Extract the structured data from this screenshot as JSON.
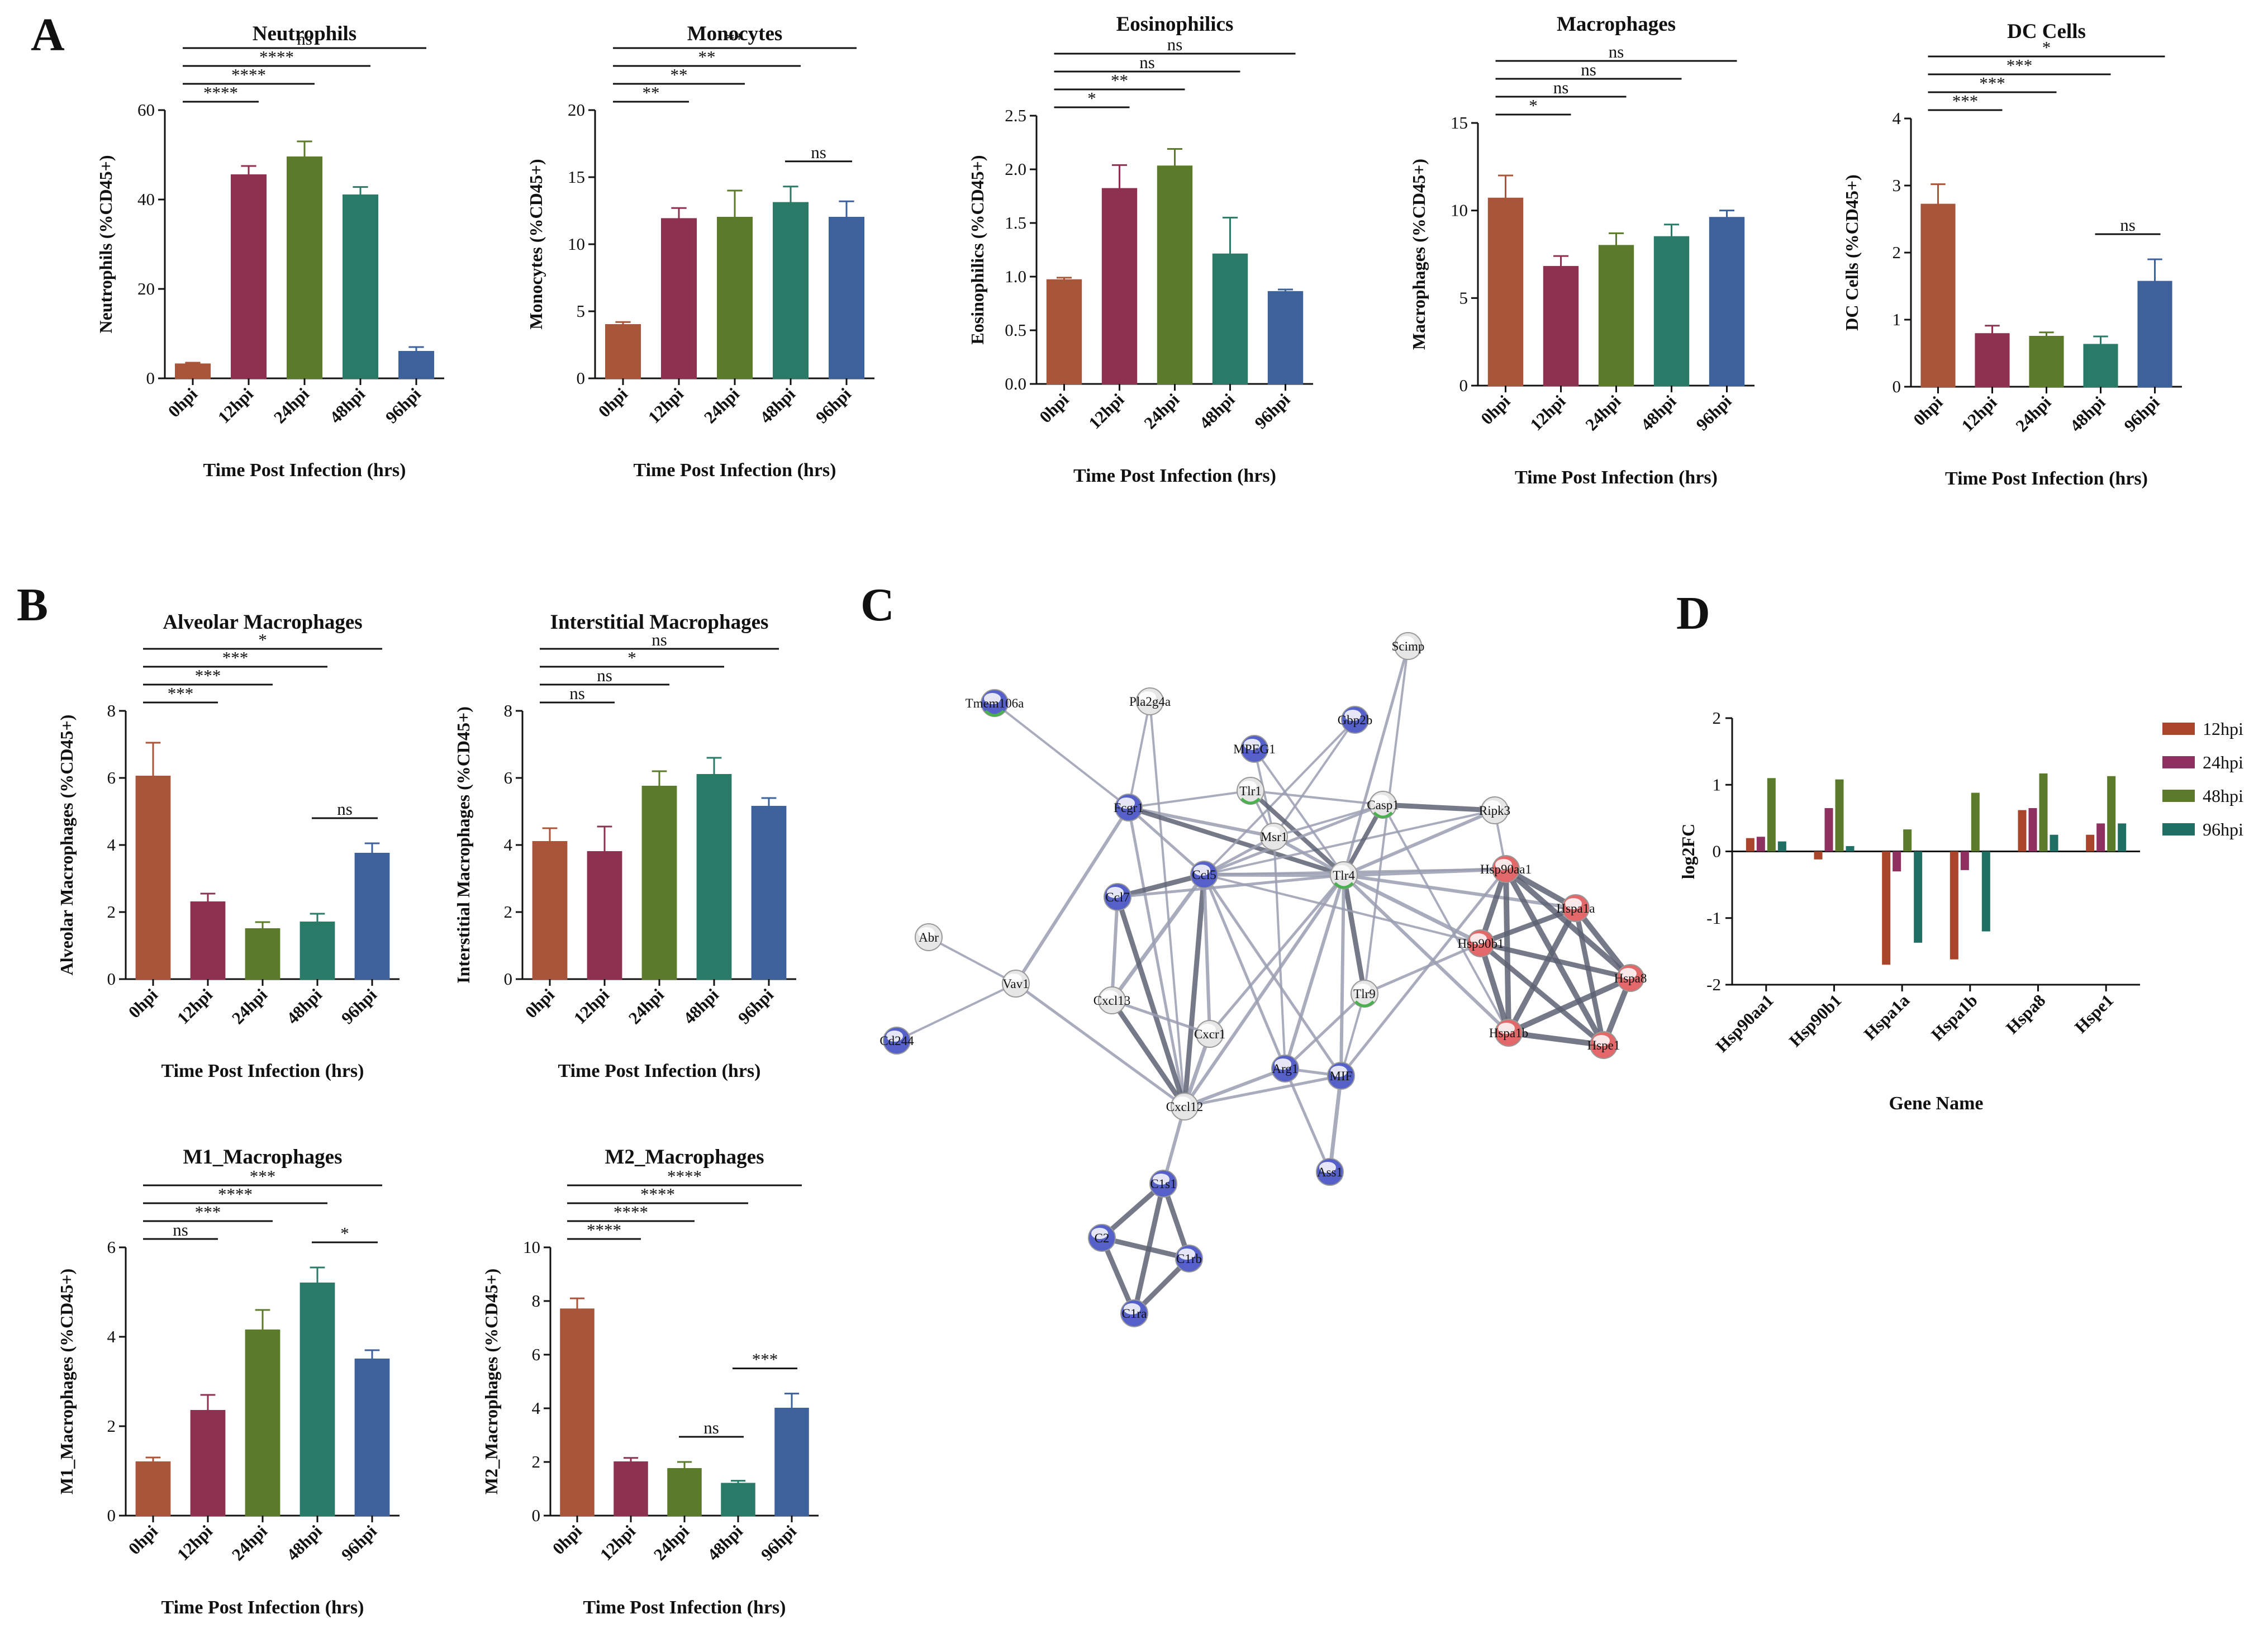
{
  "panel_labels": [
    "A",
    "B",
    "C",
    "D"
  ],
  "colors": {
    "0hpi": "#a9553a",
    "12hpi": "#8e3050",
    "24hpi": "#5b7a2a",
    "48hpi": "#2a7a68",
    "96hpi": "#3d619b",
    "d_12hpi": "#a9452a",
    "d_24hpi": "#8e3060",
    "d_48hpi": "#5b7a2a",
    "d_96hpi": "#1f6f64"
  },
  "chart_data": [
    {
      "id": "neutrophils",
      "type": "bar",
      "title": "Neutrophils",
      "xlabel": "Time Post Infection (hrs)",
      "ylabel": "Neutrophils (%CD45+)",
      "categories": [
        "0hpi",
        "12hpi",
        "24hpi",
        "48hpi",
        "96hpi"
      ],
      "values": [
        3.2,
        45.5,
        49.5,
        41.0,
        6.0
      ],
      "errors": [
        0.3,
        2.0,
        3.5,
        1.8,
        1.0
      ],
      "ylim": [
        0,
        60
      ],
      "yticks": [
        0,
        20,
        40,
        60
      ],
      "comparisons": [
        {
          "from": 0,
          "to": 1,
          "label": "****"
        },
        {
          "from": 0,
          "to": 2,
          "label": "****"
        },
        {
          "from": 0,
          "to": 3,
          "label": "****"
        },
        {
          "from": 0,
          "to": 4,
          "label": "ns"
        }
      ]
    },
    {
      "id": "monocytes",
      "type": "bar",
      "title": "Monocytes",
      "xlabel": "Time Post Infection (hrs)",
      "ylabel": "Monocytes (%CD45+)",
      "categories": [
        "0hpi",
        "12hpi",
        "24hpi",
        "48hpi",
        "96hpi"
      ],
      "values": [
        4.0,
        11.9,
        12.0,
        13.1,
        12.0
      ],
      "errors": [
        0.2,
        0.8,
        2.0,
        1.2,
        1.2
      ],
      "ylim": [
        0,
        20
      ],
      "yticks": [
        0,
        5,
        10,
        15,
        20
      ],
      "comparisons": [
        {
          "from": 0,
          "to": 1,
          "label": "**"
        },
        {
          "from": 0,
          "to": 2,
          "label": "**"
        },
        {
          "from": 0,
          "to": 3,
          "label": "**"
        },
        {
          "from": 0,
          "to": 4,
          "label": "**"
        },
        {
          "from": 3,
          "to": 4,
          "label": "ns"
        }
      ]
    },
    {
      "id": "eosinophilics",
      "type": "bar",
      "title": "Eosinophilics",
      "xlabel": "Time Post Infection (hrs)",
      "ylabel": "Eosinophilics (%CD45+)",
      "categories": [
        "0hpi",
        "12hpi",
        "24hpi",
        "48hpi",
        "96hpi"
      ],
      "values": [
        0.97,
        1.82,
        2.03,
        1.21,
        0.86
      ],
      "errors": [
        0.02,
        0.22,
        0.16,
        0.34,
        0.02
      ],
      "ylim": [
        0,
        2.5
      ],
      "yticks": [
        0.0,
        0.5,
        1.0,
        1.5,
        2.0,
        2.5
      ],
      "comparisons": [
        {
          "from": 0,
          "to": 1,
          "label": "*"
        },
        {
          "from": 0,
          "to": 2,
          "label": "**"
        },
        {
          "from": 0,
          "to": 3,
          "label": "ns"
        },
        {
          "from": 0,
          "to": 4,
          "label": "ns"
        }
      ]
    },
    {
      "id": "macrophages",
      "type": "bar",
      "title": "Macrophages",
      "xlabel": "Time Post Infection (hrs)",
      "ylabel": "Macrophages (%CD45+)",
      "categories": [
        "0hpi",
        "12hpi",
        "24hpi",
        "48hpi",
        "96hpi"
      ],
      "values": [
        10.7,
        6.8,
        8.0,
        8.5,
        9.6
      ],
      "errors": [
        1.3,
        0.6,
        0.7,
        0.7,
        0.4
      ],
      "ylim": [
        0,
        15
      ],
      "yticks": [
        0,
        5,
        10,
        15
      ],
      "comparisons": [
        {
          "from": 0,
          "to": 1,
          "label": "*"
        },
        {
          "from": 0,
          "to": 2,
          "label": "ns"
        },
        {
          "from": 0,
          "to": 3,
          "label": "ns"
        },
        {
          "from": 0,
          "to": 4,
          "label": "ns"
        }
      ]
    },
    {
      "id": "dc_cells",
      "type": "bar",
      "title": "DC Cells",
      "xlabel": "Time Post Infection (hrs)",
      "ylabel": "DC Cells (%CD45+)",
      "categories": [
        "0hpi",
        "12hpi",
        "24hpi",
        "48hpi",
        "96hpi"
      ],
      "values": [
        2.72,
        0.79,
        0.75,
        0.63,
        1.57
      ],
      "errors": [
        0.3,
        0.12,
        0.06,
        0.12,
        0.33
      ],
      "ylim": [
        0,
        4
      ],
      "yticks": [
        0,
        1,
        2,
        3,
        4
      ],
      "comparisons": [
        {
          "from": 0,
          "to": 1,
          "label": "***"
        },
        {
          "from": 0,
          "to": 2,
          "label": "***"
        },
        {
          "from": 0,
          "to": 3,
          "label": "***"
        },
        {
          "from": 0,
          "to": 4,
          "label": "*"
        },
        {
          "from": 3,
          "to": 4,
          "label": "ns"
        }
      ]
    },
    {
      "id": "alveolar",
      "type": "bar",
      "title": "Alveolar Macrophages",
      "xlabel": "Time Post Infection (hrs)",
      "ylabel": "Alveolar Macrophages (%CD45+)",
      "categories": [
        "0hpi",
        "12hpi",
        "24hpi",
        "48hpi",
        "96hpi"
      ],
      "values": [
        6.05,
        2.3,
        1.5,
        1.7,
        3.75
      ],
      "errors": [
        1.0,
        0.25,
        0.2,
        0.25,
        0.3
      ],
      "ylim": [
        0,
        8
      ],
      "yticks": [
        0,
        2,
        4,
        6,
        8
      ],
      "comparisons": [
        {
          "from": 0,
          "to": 1,
          "label": "***"
        },
        {
          "from": 0,
          "to": 2,
          "label": "***"
        },
        {
          "from": 0,
          "to": 3,
          "label": "***"
        },
        {
          "from": 0,
          "to": 4,
          "label": "*"
        },
        {
          "from": 3,
          "to": 4,
          "label": "ns"
        }
      ]
    },
    {
      "id": "interstitial",
      "type": "bar",
      "title": "Interstitial Macrophages",
      "xlabel": "Time Post Infection (hrs)",
      "ylabel": "Interstitial Macrophages (%CD45+)",
      "categories": [
        "0hpi",
        "12hpi",
        "24hpi",
        "48hpi",
        "96hpi"
      ],
      "values": [
        4.1,
        3.8,
        5.75,
        6.1,
        5.15
      ],
      "errors": [
        0.4,
        0.75,
        0.45,
        0.5,
        0.25
      ],
      "ylim": [
        0,
        8
      ],
      "yticks": [
        0,
        2,
        4,
        6,
        8
      ],
      "comparisons": [
        {
          "from": 0,
          "to": 1,
          "label": "ns"
        },
        {
          "from": 0,
          "to": 2,
          "label": "ns"
        },
        {
          "from": 0,
          "to": 3,
          "label": "*"
        },
        {
          "from": 0,
          "to": 4,
          "label": "ns"
        }
      ]
    },
    {
      "id": "m1",
      "type": "bar",
      "title": "M1_Macrophages",
      "xlabel": "Time Post Infection (hrs)",
      "ylabel": "M1_Macrophages (%CD45+)",
      "categories": [
        "0hpi",
        "12hpi",
        "24hpi",
        "48hpi",
        "96hpi"
      ],
      "values": [
        1.2,
        2.35,
        4.15,
        5.2,
        3.5
      ],
      "errors": [
        0.1,
        0.35,
        0.45,
        0.35,
        0.2
      ],
      "ylim": [
        0,
        6
      ],
      "yticks": [
        0,
        2,
        4,
        6
      ],
      "comparisons": [
        {
          "from": 0,
          "to": 1,
          "label": "ns"
        },
        {
          "from": 0,
          "to": 2,
          "label": "***"
        },
        {
          "from": 0,
          "to": 3,
          "label": "****"
        },
        {
          "from": 0,
          "to": 4,
          "label": "***"
        },
        {
          "from": 3,
          "to": 4,
          "label": "*"
        }
      ]
    },
    {
      "id": "m2",
      "type": "bar",
      "title": "M2_Macrophages",
      "xlabel": "Time Post Infection (hrs)",
      "ylabel": "M2_Macrophages (%CD45+)",
      "categories": [
        "0hpi",
        "12hpi",
        "24hpi",
        "48hpi",
        "96hpi"
      ],
      "values": [
        7.7,
        2.0,
        1.75,
        1.2,
        4.0
      ],
      "errors": [
        0.4,
        0.15,
        0.25,
        0.1,
        0.55
      ],
      "ylim": [
        0,
        10
      ],
      "yticks": [
        0,
        2,
        4,
        6,
        8,
        10
      ],
      "comparisons": [
        {
          "from": 0,
          "to": 1,
          "label": "****"
        },
        {
          "from": 0,
          "to": 2,
          "label": "****"
        },
        {
          "from": 0,
          "to": 3,
          "label": "****"
        },
        {
          "from": 0,
          "to": 4,
          "label": "****"
        },
        {
          "from": 2,
          "to": 3,
          "label": "ns"
        },
        {
          "from": 3,
          "to": 4,
          "label": "***"
        }
      ]
    },
    {
      "id": "log2fc",
      "type": "bar",
      "title": "",
      "xlabel": "Gene Name",
      "ylabel": "log2FC",
      "categories": [
        "Hsp90aa1",
        "Hsp90b1",
        "Hspa1a",
        "Hspa1b",
        "Hspa8",
        "Hspe1"
      ],
      "series": [
        {
          "name": "12hpi",
          "values": [
            0.2,
            -0.12,
            -1.7,
            -1.62,
            0.62,
            0.25
          ]
        },
        {
          "name": "24hpi",
          "values": [
            0.22,
            0.65,
            -0.3,
            -0.28,
            0.65,
            0.42
          ]
        },
        {
          "name": "48hpi",
          "values": [
            1.1,
            1.08,
            0.33,
            0.88,
            1.17,
            1.13
          ]
        },
        {
          "name": "96hpi",
          "values": [
            0.15,
            0.08,
            -1.37,
            -1.2,
            0.25,
            0.42
          ]
        }
      ],
      "ylim": [
        -2,
        2
      ],
      "yticks": [
        -2,
        -1,
        0,
        1,
        2
      ],
      "legend": "top-right"
    }
  ],
  "network": {
    "nodes": [
      {
        "id": "Scimp",
        "color": "white"
      },
      {
        "id": "Tmem106a",
        "color": "blue-green"
      },
      {
        "id": "Pla2g4a",
        "color": "white"
      },
      {
        "id": "Gbp2b",
        "color": "blue"
      },
      {
        "id": "MPEG1",
        "color": "blue"
      },
      {
        "id": "Ripk3",
        "color": "white"
      },
      {
        "id": "Tlr1",
        "color": "white-green"
      },
      {
        "id": "Casp1",
        "color": "white-green"
      },
      {
        "id": "Fcgr1",
        "color": "blue"
      },
      {
        "id": "Msr1",
        "color": "white"
      },
      {
        "id": "Hsp90aa1",
        "color": "red"
      },
      {
        "id": "Hspa1a",
        "color": "red"
      },
      {
        "id": "Ccl5",
        "color": "blue"
      },
      {
        "id": "Tlr4",
        "color": "white-green"
      },
      {
        "id": "Abr",
        "color": "white"
      },
      {
        "id": "Ccl7",
        "color": "blue"
      },
      {
        "id": "Hsp90b1",
        "color": "red"
      },
      {
        "id": "Hspa8",
        "color": "red"
      },
      {
        "id": "Vav1",
        "color": "white"
      },
      {
        "id": "Tlr9",
        "color": "white-green"
      },
      {
        "id": "Cxcl13",
        "color": "white"
      },
      {
        "id": "Cd244",
        "color": "blue"
      },
      {
        "id": "Cxcr1",
        "color": "white"
      },
      {
        "id": "Hspa1b",
        "color": "red"
      },
      {
        "id": "Hspe1",
        "color": "red"
      },
      {
        "id": "Arg1",
        "color": "blue"
      },
      {
        "id": "MIF",
        "color": "blue"
      },
      {
        "id": "Cxcl12",
        "color": "white"
      },
      {
        "id": "Ass1",
        "color": "blue"
      },
      {
        "id": "C1s1",
        "color": "blue"
      },
      {
        "id": "C2",
        "color": "blue"
      },
      {
        "id": "C1rb",
        "color": "blue"
      },
      {
        "id": "C1ra",
        "color": "blue"
      }
    ]
  }
}
